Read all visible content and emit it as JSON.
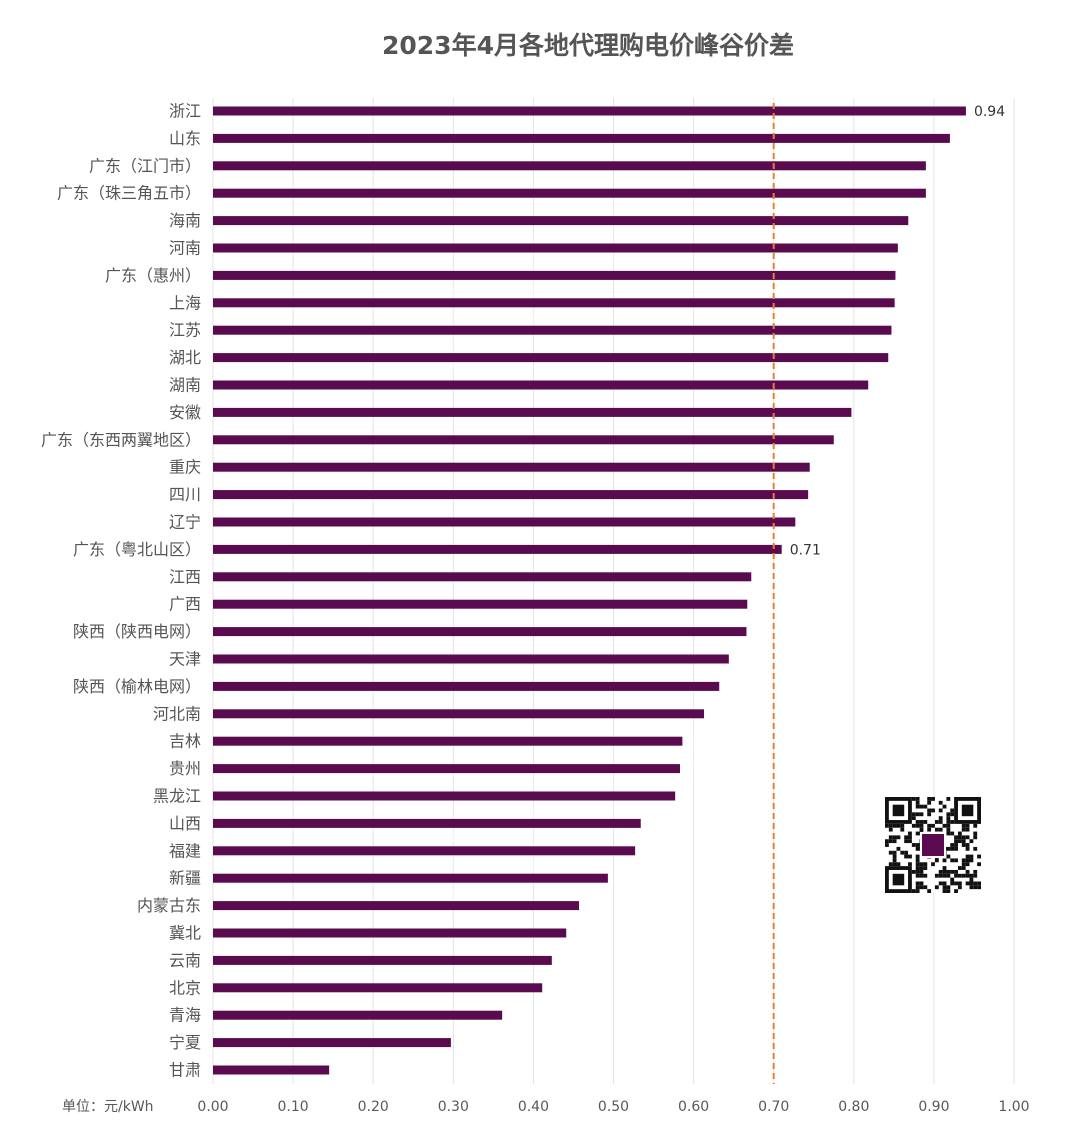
{
  "chart_data": {
    "type": "bar",
    "orientation": "horizontal",
    "title": "2023年4月各地代理购电价峰谷价差",
    "unit_label": "单位：元/kWh",
    "categories": [
      "浙江",
      "山东",
      "广东（江门市）",
      "广东（珠三角五市）",
      "海南",
      "河南",
      "广东（惠州）",
      "上海",
      "江苏",
      "湖北",
      "湖南",
      "安徽",
      "广东（东西两翼地区）",
      "重庆",
      "四川",
      "辽宁",
      "广东（粤北山区）",
      "江西",
      "广西",
      "陕西（陕西电网）",
      "天津",
      "陕西（榆林电网）",
      "河北南",
      "吉林",
      "贵州",
      "黑龙江",
      "山西",
      "福建",
      "新疆",
      "内蒙古东",
      "冀北",
      "云南",
      "北京",
      "青海",
      "宁夏",
      "甘肃"
    ],
    "values": [
      0.94,
      0.92,
      0.89,
      0.89,
      0.868,
      0.855,
      0.852,
      0.851,
      0.847,
      0.843,
      0.818,
      0.797,
      0.775,
      0.745,
      0.743,
      0.727,
      0.71,
      0.672,
      0.667,
      0.666,
      0.644,
      0.632,
      0.613,
      0.586,
      0.583,
      0.577,
      0.534,
      0.527,
      0.493,
      0.457,
      0.441,
      0.423,
      0.411,
      0.361,
      0.297,
      0.145
    ],
    "data_labels": {
      "0": "0.94",
      "16": "0.71"
    },
    "xlim": [
      0,
      1.0
    ],
    "xticks": [
      "0.00",
      "0.10",
      "0.20",
      "0.30",
      "0.40",
      "0.50",
      "0.60",
      "0.70",
      "0.80",
      "0.90",
      "1.00"
    ],
    "reference_line": 0.7,
    "colors": {
      "bar": "#5a0a4e",
      "reference": "#ed7d31",
      "grid": "#e3e3e3"
    },
    "grid": true,
    "legend": "none"
  }
}
